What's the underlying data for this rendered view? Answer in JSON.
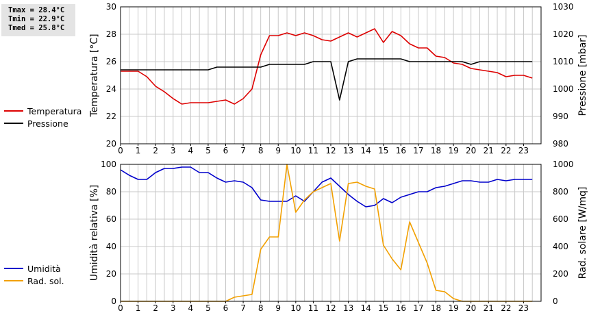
{
  "stats": {
    "tmax": "Tmax = 28.4°C",
    "tmin": "Tmin = 22.9°C",
    "tmed": "Tmed = 25.8°C"
  },
  "colors": {
    "temperature": "#dd0000",
    "pressure": "#000000",
    "humidity": "#0000cc",
    "radiation": "#f2a000",
    "grid": "#c8c8c8",
    "axis": "#000000"
  },
  "chart_data": [
    {
      "type": "line",
      "ylabel": "Temperatura [°C]",
      "y2label": "Pressione [mbar]",
      "xlim": [
        0,
        24
      ],
      "ylim": [
        20,
        30
      ],
      "y2lim": [
        980,
        1030
      ],
      "x_ticks": [
        0,
        1,
        2,
        3,
        4,
        5,
        6,
        7,
        8,
        9,
        10,
        11,
        12,
        13,
        14,
        15,
        16,
        17,
        18,
        19,
        20,
        21,
        22,
        23
      ],
      "y_ticks": [
        20,
        22,
        24,
        26,
        28,
        30
      ],
      "y2_ticks": [
        980,
        990,
        1000,
        1010,
        1020,
        1030
      ],
      "grid": true,
      "legend_position": "left",
      "series": [
        {
          "name": "Temperatura",
          "axis": "left",
          "color": "#dd0000",
          "x": [
            0,
            0.5,
            1,
            1.5,
            2,
            2.5,
            3,
            3.5,
            4,
            4.5,
            5,
            5.5,
            6,
            6.5,
            7,
            7.5,
            8,
            8.5,
            9,
            9.5,
            10,
            10.5,
            11,
            11.5,
            12,
            12.5,
            13,
            13.5,
            14,
            14.5,
            15,
            15.5,
            16,
            16.5,
            17,
            17.5,
            18,
            18.5,
            19,
            19.5,
            20,
            20.5,
            21,
            21.5,
            22,
            22.5,
            23,
            23.5
          ],
          "values": [
            25.3,
            25.3,
            25.3,
            24.9,
            24.2,
            23.8,
            23.3,
            22.9,
            23.0,
            23.0,
            23.0,
            23.1,
            23.2,
            22.9,
            23.3,
            24.0,
            26.5,
            27.9,
            27.9,
            28.1,
            27.9,
            28.1,
            27.9,
            27.6,
            27.5,
            27.8,
            28.1,
            27.8,
            28.1,
            28.4,
            27.4,
            28.2,
            27.9,
            27.3,
            27.0,
            27.0,
            26.4,
            26.3,
            25.9,
            25.8,
            25.5,
            25.4,
            25.3,
            25.2,
            24.9,
            25.0,
            25.0,
            24.8
          ]
        },
        {
          "name": "Pressione",
          "axis": "right",
          "color": "#000000",
          "x": [
            0,
            0.5,
            1,
            1.5,
            2,
            2.5,
            3,
            3.5,
            4,
            4.5,
            5,
            5.5,
            6,
            6.5,
            7,
            7.5,
            8,
            8.5,
            9,
            9.5,
            10,
            10.5,
            11,
            11.5,
            12,
            12.5,
            13,
            13.5,
            14,
            14.5,
            15,
            15.5,
            16,
            16.5,
            17,
            17.5,
            18,
            18.5,
            19,
            19.5,
            20,
            20.5,
            21,
            21.5,
            22,
            22.5,
            23,
            23.5
          ],
          "values": [
            1007,
            1007,
            1007,
            1007,
            1007,
            1007,
            1007,
            1007,
            1007,
            1007,
            1007,
            1008,
            1008,
            1008,
            1008,
            1008,
            1008,
            1009,
            1009,
            1009,
            1009,
            1009,
            1010,
            1010,
            1010,
            996,
            1010,
            1011,
            1011,
            1011,
            1011,
            1011,
            1011,
            1010,
            1010,
            1010,
            1010,
            1010,
            1010,
            1010,
            1009,
            1010,
            1010,
            1010,
            1010,
            1010,
            1010,
            1010
          ]
        }
      ]
    },
    {
      "type": "line",
      "ylabel": "Umidità relativa [%]",
      "y2label": "Rad. solare [W/mq]",
      "xlim": [
        0,
        24
      ],
      "ylim": [
        0,
        100
      ],
      "y2lim": [
        0,
        1000
      ],
      "x_ticks": [
        0,
        1,
        2,
        3,
        4,
        5,
        6,
        7,
        8,
        9,
        10,
        11,
        12,
        13,
        14,
        15,
        16,
        17,
        18,
        19,
        20,
        21,
        22,
        23
      ],
      "y_ticks": [
        0,
        20,
        40,
        60,
        80,
        100
      ],
      "y2_ticks": [
        0,
        200,
        400,
        600,
        800,
        1000
      ],
      "grid": true,
      "legend_position": "left",
      "series": [
        {
          "name": "Umidità",
          "axis": "left",
          "color": "#0000cc",
          "x": [
            0,
            0.5,
            1,
            1.5,
            2,
            2.5,
            3,
            3.5,
            4,
            4.5,
            5,
            5.5,
            6,
            6.5,
            7,
            7.5,
            8,
            8.5,
            9,
            9.5,
            10,
            10.5,
            11,
            11.5,
            12,
            12.5,
            13,
            13.5,
            14,
            14.5,
            15,
            15.5,
            16,
            16.5,
            17,
            17.5,
            18,
            18.5,
            19,
            19.5,
            20,
            20.5,
            21,
            21.5,
            22,
            22.5,
            23,
            23.5
          ],
          "values": [
            96,
            92,
            89,
            89,
            94,
            97,
            97,
            98,
            98,
            94,
            94,
            90,
            87,
            88,
            87,
            83,
            74,
            73,
            73,
            73,
            77,
            73,
            80,
            87,
            90,
            84,
            78,
            73,
            69,
            70,
            75,
            72,
            76,
            78,
            80,
            80,
            83,
            84,
            86,
            88,
            88,
            87,
            87,
            89,
            88,
            89,
            89,
            89
          ]
        },
        {
          "name": "Rad. sol.",
          "axis": "right",
          "color": "#f2a000",
          "x": [
            0,
            0.5,
            1,
            1.5,
            2,
            2.5,
            3,
            3.5,
            4,
            4.5,
            5,
            5.5,
            6,
            6.5,
            7,
            7.5,
            8,
            8.5,
            9,
            9.5,
            10,
            10.5,
            11,
            11.5,
            12,
            12.5,
            13,
            13.5,
            14,
            14.5,
            15,
            15.5,
            16,
            16.5,
            17,
            17.5,
            18,
            18.5,
            19,
            19.5,
            20,
            20.5,
            21,
            21.5,
            22,
            22.5,
            23,
            23.5
          ],
          "values": [
            0,
            0,
            0,
            0,
            0,
            0,
            0,
            0,
            0,
            0,
            0,
            0,
            0,
            30,
            40,
            50,
            380,
            470,
            470,
            1010,
            650,
            740,
            800,
            830,
            860,
            440,
            860,
            870,
            840,
            820,
            410,
            310,
            230,
            580,
            430,
            280,
            80,
            70,
            20,
            0,
            0,
            0,
            0,
            0,
            0,
            0,
            0,
            0
          ]
        }
      ]
    }
  ]
}
